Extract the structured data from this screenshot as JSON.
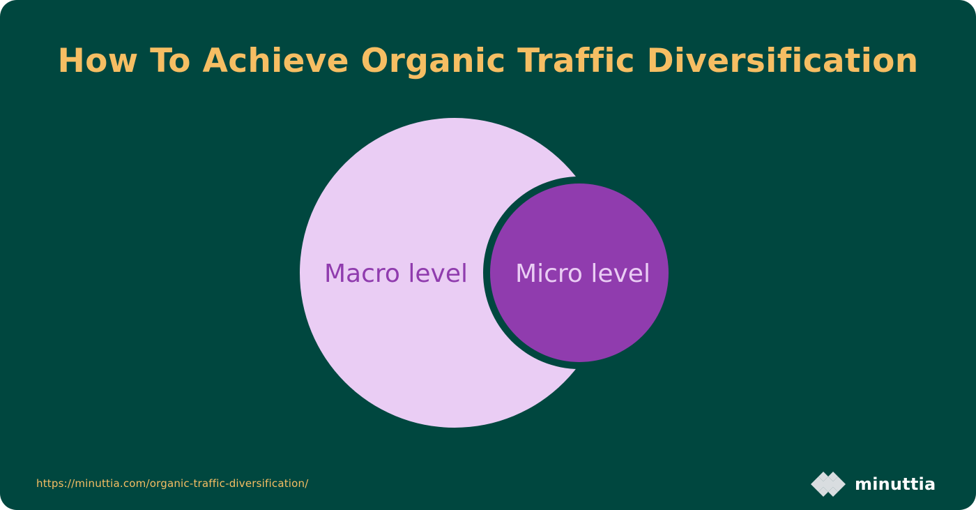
{
  "header": {
    "title": "How To Achieve Organic Traffic Diversification"
  },
  "diagram": {
    "outer_circle": {
      "label": "Macro level"
    },
    "inner_circle": {
      "label": "Micro level"
    }
  },
  "footer": {
    "source_url": "https://minuttia.com/organic-traffic-diversification/",
    "brand_name": "minuttia",
    "brand_logo_icon": "diamond-cluster-icon"
  },
  "colors": {
    "background": "#00473F",
    "title": "#F6BE63",
    "outer_circle_fill": "#EACDF4",
    "inner_circle_fill": "#903CAE",
    "outer_label": "#903CAE",
    "inner_label": "#EACDF4",
    "source_url": "#F6BE63",
    "brand_text": "#FFFFFF",
    "brand_mark": "#D9DDE0"
  }
}
